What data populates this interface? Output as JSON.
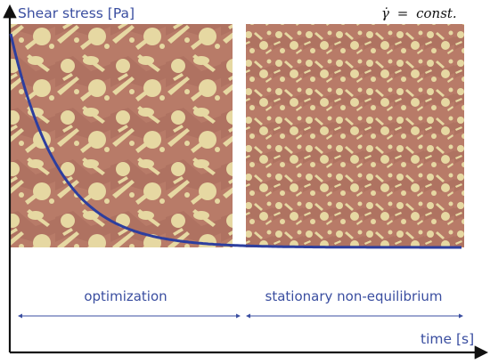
{
  "axes": {
    "y_label": "Shear stress [Pa]",
    "x_label": "time [s]"
  },
  "condition": {
    "symbol": "γ̇",
    "equals": "=",
    "value": "const."
  },
  "regions": [
    {
      "key": "left",
      "label": "optimization"
    },
    {
      "key": "right",
      "label": "stationary non-equilibrium"
    }
  ],
  "colors": {
    "axis": "#111111",
    "curve": "#2d3e9e",
    "text": "#3a4ea0",
    "arrow": "#3a4ea0",
    "micro_matrix": "#b87b68",
    "micro_dark": "#9e6455",
    "micro_particle": "#e6d8a2"
  },
  "images": [
    {
      "name": "microstructure-optimization",
      "structure": "large anisotropic grains and elongated needles"
    },
    {
      "name": "microstructure-stationary",
      "structure": "fine uniformly distributed grains"
    }
  ],
  "curve_shape": "exponential decay to plateau"
}
